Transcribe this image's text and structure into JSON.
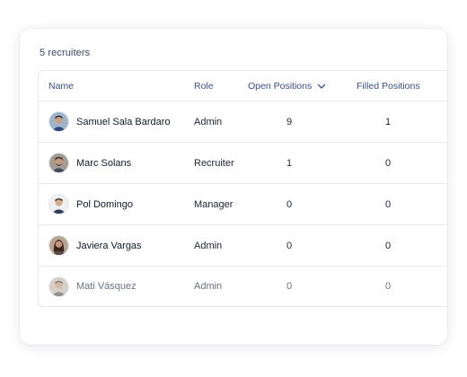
{
  "summary": {
    "count_label": "5 recruiters"
  },
  "table": {
    "headers": {
      "name": "Name",
      "role": "Role",
      "open_positions": "Open Positions",
      "filled_positions": "Filled Positions"
    },
    "sort_icon": "chevron-down-icon",
    "rows": [
      {
        "name": "Samuel Sala Bardaro",
        "role": "Admin",
        "open": "9",
        "filled": "1",
        "avatar_color": "#3e5a7a"
      },
      {
        "name": "Marc Solans",
        "role": "Recruiter",
        "open": "1",
        "filled": "0",
        "avatar_color": "#6b4e3a"
      },
      {
        "name": "Pol Domingo",
        "role": "Manager",
        "open": "0",
        "filled": "0",
        "avatar_color": "#c79a6b"
      },
      {
        "name": "Javiera Vargas",
        "role": "Admin",
        "open": "0",
        "filled": "0",
        "avatar_color": "#4a3a34"
      },
      {
        "name": "Mati Vásquez",
        "role": "Admin",
        "open": "0",
        "filled": "0",
        "avatar_color": "#8a7a6a"
      }
    ]
  },
  "colors": {
    "header_text": "#3b4f86",
    "border": "#e6e9ef",
    "muted_text": "#6b7280"
  }
}
